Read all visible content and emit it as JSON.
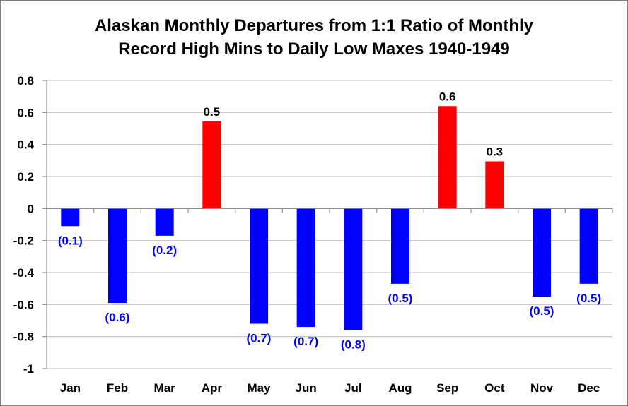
{
  "chart_data": {
    "type": "bar",
    "title_line1": "Alaskan Monthly Departures from 1:1 Ratio of Monthly",
    "title_line2": "Record High Mins to Daily Low Maxes 1940-1949",
    "xlabel": "",
    "ylabel": "",
    "categories": [
      "Jan",
      "Feb",
      "Mar",
      "Apr",
      "May",
      "Jun",
      "Jul",
      "Aug",
      "Sep",
      "Oct",
      "Nov",
      "Dec"
    ],
    "values": [
      -0.11,
      -0.59,
      -0.17,
      0.545,
      -0.72,
      -0.74,
      -0.76,
      -0.47,
      0.64,
      0.295,
      -0.55,
      -0.47
    ],
    "data_labels": [
      "(0.1)",
      "(0.6)",
      "(0.2)",
      "0.5",
      "(0.7)",
      "(0.7)",
      "(0.8)",
      "(0.5)",
      "0.6",
      "0.3",
      "(0.5)",
      "(0.5)"
    ],
    "ylim": [
      -1,
      0.8
    ],
    "yticks": [
      0.8,
      0.6,
      0.4,
      0.2,
      0,
      -0.2,
      -0.4,
      -0.6,
      -0.8,
      -1
    ],
    "ytick_labels": [
      "0.8",
      "0.6",
      "0.4",
      "0.2",
      "0",
      "-0.2",
      "-0.4",
      "-0.6",
      "-0.8",
      "-1"
    ],
    "grid": true,
    "legend": "none",
    "colors": {
      "positive": "#ff0000",
      "negative": "#0000ff",
      "positive_label": "#000000",
      "negative_label": "#0000ff",
      "grid": "#bfbfbf",
      "axis": "#808080"
    }
  }
}
